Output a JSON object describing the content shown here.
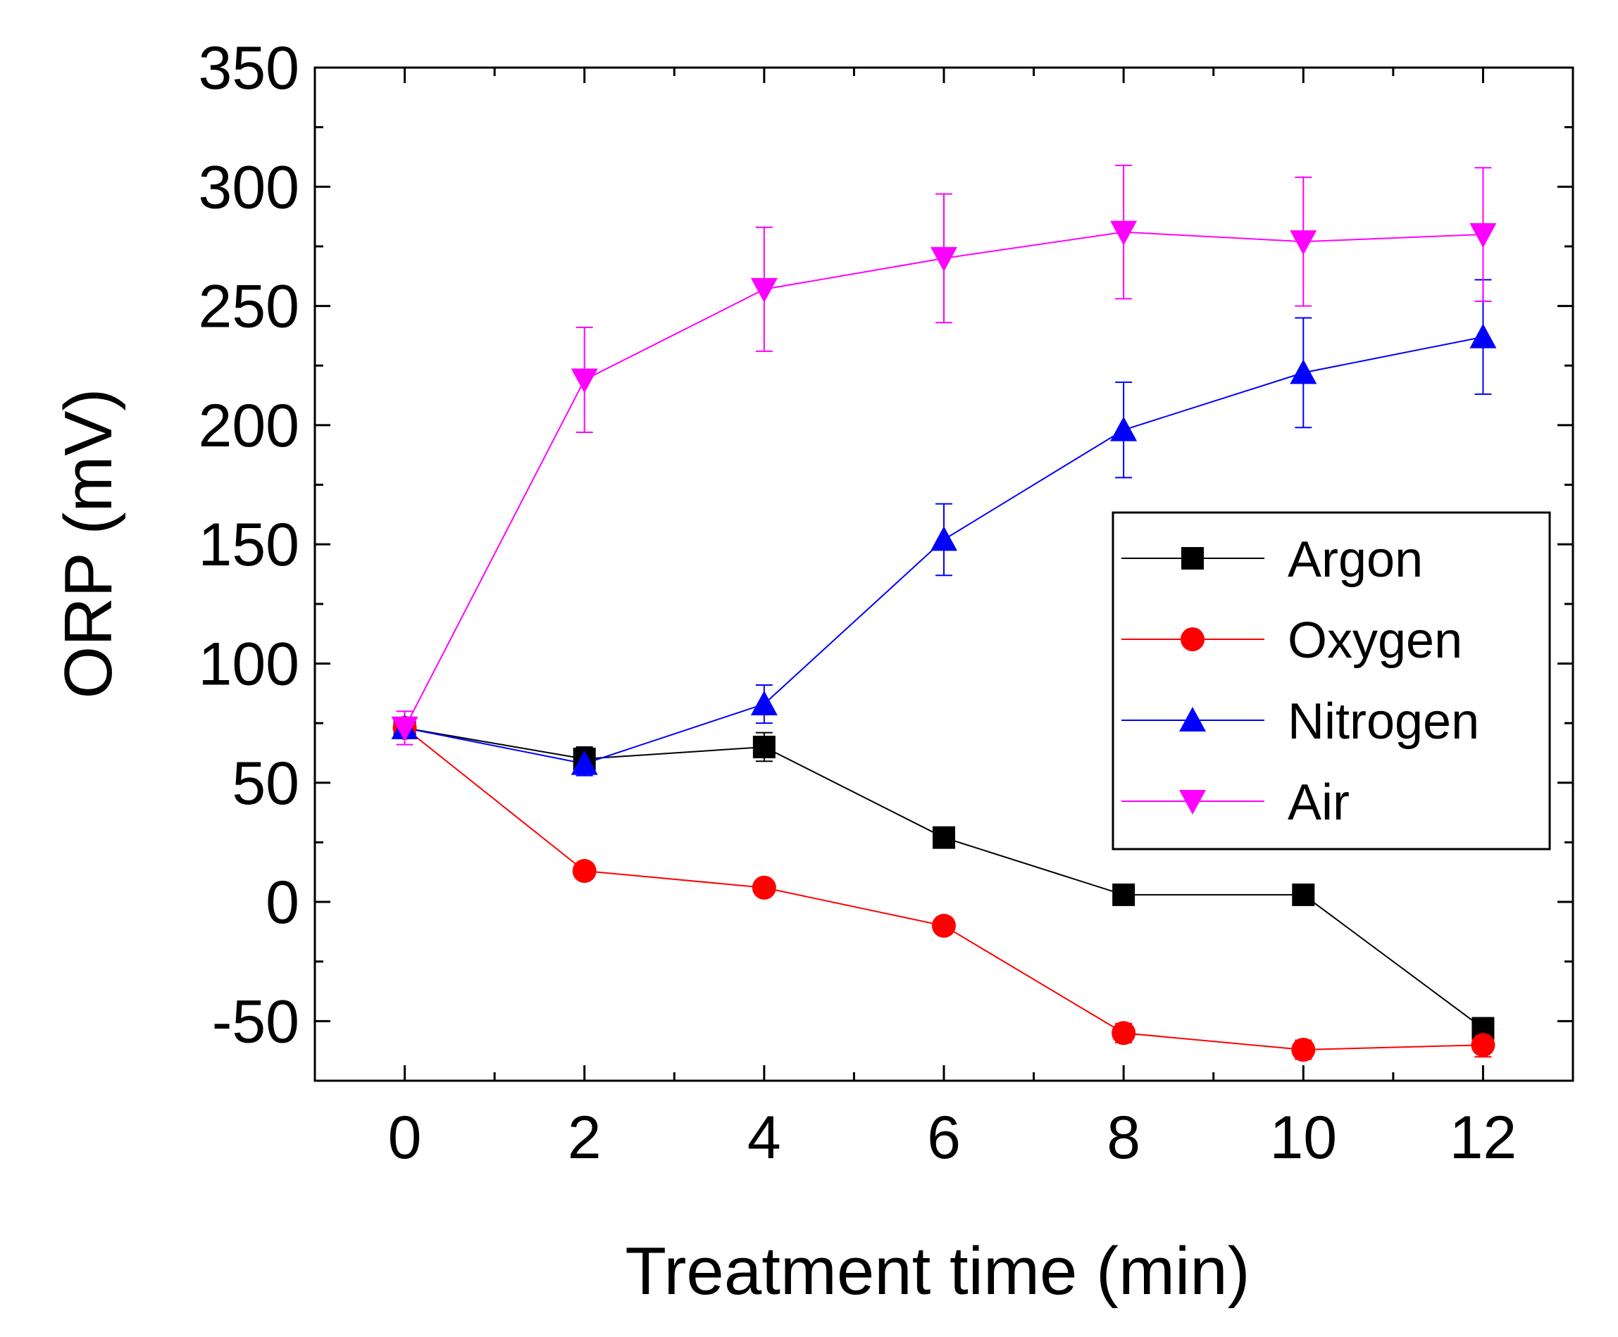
{
  "chart_data": {
    "type": "line",
    "xlabel": "Treatment time (min)",
    "ylabel": "ORP (mV)",
    "xlim": [
      -1,
      13
    ],
    "ylim": [
      -75,
      350
    ],
    "x_ticks": [
      0,
      2,
      4,
      6,
      8,
      10,
      12
    ],
    "y_ticks": [
      -50,
      0,
      50,
      100,
      150,
      200,
      250,
      300,
      350
    ],
    "x_tick_labels": [
      "0",
      "2",
      "4",
      "6",
      "8",
      "10",
      "12"
    ],
    "y_tick_labels": [
      "-50",
      "0",
      "50",
      "100",
      "150",
      "200",
      "250",
      "300",
      "350"
    ],
    "legend_position": "center-right",
    "grid": false,
    "x": [
      0,
      2,
      4,
      6,
      8,
      10,
      12
    ],
    "series": [
      {
        "name": "Argon",
        "color": "#000000",
        "marker": "square",
        "values": [
          73,
          60,
          65,
          27,
          3,
          3,
          -53
        ],
        "errors": [
          4,
          5,
          6,
          3,
          2,
          2,
          3
        ]
      },
      {
        "name": "Oxygen",
        "color": "#ff0000",
        "marker": "circle",
        "values": [
          73,
          13,
          6,
          -10,
          -55,
          -62,
          -60
        ],
        "errors": [
          4,
          3,
          3,
          3,
          4,
          4,
          5
        ]
      },
      {
        "name": "Nitrogen",
        "color": "#0000ff",
        "marker": "triangle-up",
        "values": [
          73,
          58,
          83,
          152,
          198,
          222,
          237
        ],
        "errors": [
          4,
          5,
          8,
          15,
          20,
          23,
          24
        ]
      },
      {
        "name": "Air",
        "color": "#ff00ff",
        "marker": "triangle-down",
        "values": [
          73,
          219,
          257,
          270,
          281,
          277,
          280
        ],
        "errors": [
          7,
          22,
          26,
          27,
          28,
          27,
          28
        ]
      }
    ]
  }
}
